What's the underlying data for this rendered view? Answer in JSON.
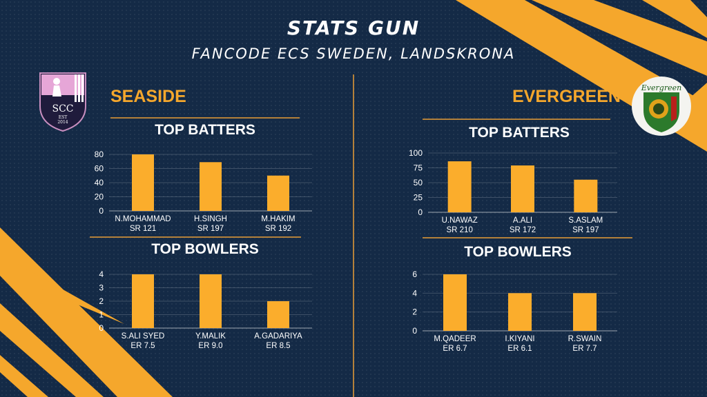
{
  "header": {
    "title": "STATS GUN",
    "subtitle": "FANCODE ECS SWEDEN, LANDSKRONA"
  },
  "colors": {
    "accent": "#f5a72c",
    "bar": "#fbad2c",
    "background": "#142a46",
    "divider": "#b4813a"
  },
  "teams": [
    {
      "name": "SEASIDE",
      "logo": {
        "text": "SCC",
        "est": "EST",
        "year": "2014"
      },
      "batters_title": "TOP BATTERS",
      "bowlers_title": "TOP BOWLERS"
    },
    {
      "name": "EVERGREEN",
      "logo": {
        "text": "Evergreen"
      },
      "batters_title": "TOP BATTERS",
      "bowlers_title": "TOP BOWLERS"
    }
  ],
  "chart_data": [
    {
      "type": "bar",
      "title": "TOP BATTERS",
      "team": "SEASIDE",
      "categories": [
        "N.MOHAMMAD",
        "H.SINGH",
        "M.HAKIM"
      ],
      "sublabels": [
        "SR 121",
        "SR 197",
        "SR 192"
      ],
      "values": [
        80,
        69,
        50
      ],
      "ylim": [
        0,
        80
      ],
      "yticks": [
        0,
        20,
        40,
        60,
        80
      ],
      "grid": true
    },
    {
      "type": "bar",
      "title": "TOP BOWLERS",
      "team": "SEASIDE",
      "categories": [
        "S.ALI SYED",
        "Y.MALIK",
        "A.GADARIYA"
      ],
      "sublabels": [
        "ER 7.5",
        "ER 9.0",
        "ER 8.5"
      ],
      "values": [
        4,
        4,
        2
      ],
      "ylim": [
        0,
        4
      ],
      "yticks": [
        0,
        1,
        2,
        3,
        4
      ],
      "grid": true
    },
    {
      "type": "bar",
      "title": "TOP BATTERS",
      "team": "EVERGREEN",
      "categories": [
        "U.NAWAZ",
        "A.ALI",
        "S.ASLAM"
      ],
      "sublabels": [
        "SR 210",
        "SR 172",
        "SR 197"
      ],
      "values": [
        86,
        79,
        55
      ],
      "ylim": [
        0,
        100
      ],
      "yticks": [
        0,
        25,
        50,
        75,
        100
      ],
      "grid": true
    },
    {
      "type": "bar",
      "title": "TOP BOWLERS",
      "team": "EVERGREEN",
      "categories": [
        "M.QADEER",
        "I.KIYANI",
        "R.SWAIN"
      ],
      "sublabels": [
        "ER 6.7",
        "ER 6.1",
        "ER 7.7"
      ],
      "values": [
        6,
        4,
        4
      ],
      "ylim": [
        0,
        6
      ],
      "yticks": [
        0,
        2,
        4,
        6
      ],
      "grid": true
    }
  ]
}
